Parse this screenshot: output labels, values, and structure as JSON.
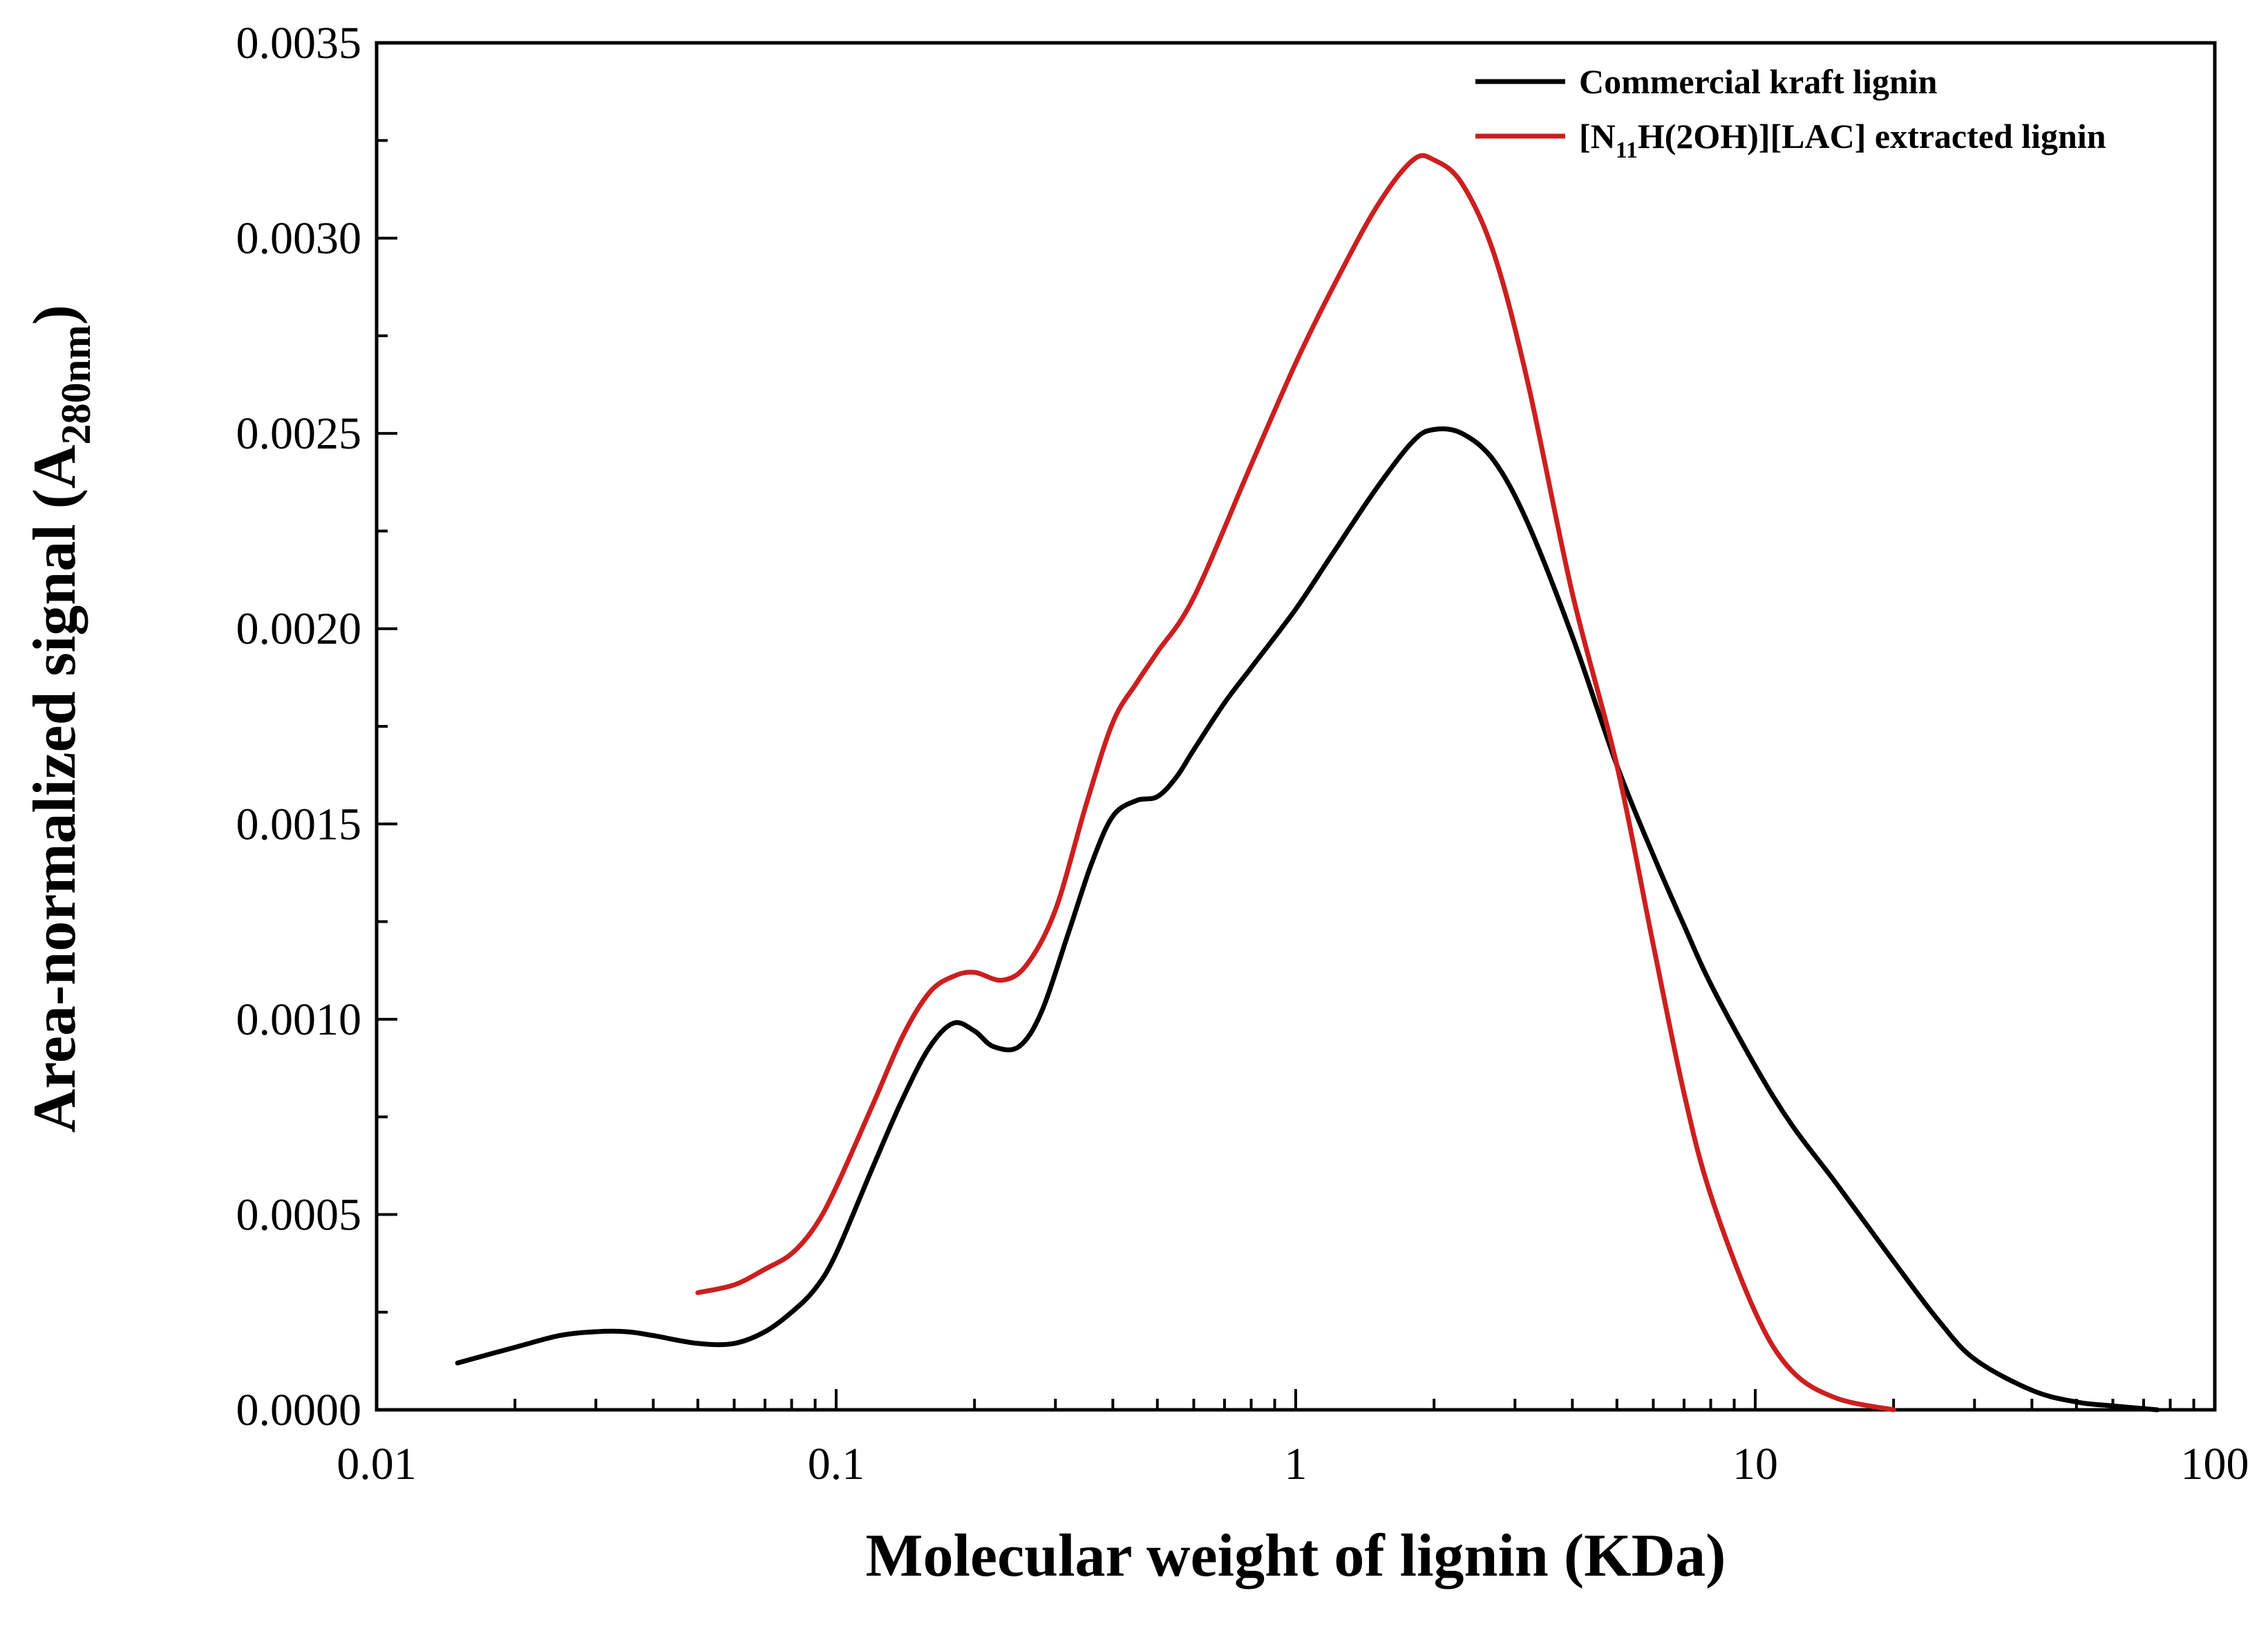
{
  "chart_data": {
    "type": "line",
    "xscale": "log",
    "xlim": [
      0.01,
      100
    ],
    "ylim": [
      0,
      0.0035
    ],
    "grid": false,
    "legend_position": "top-right",
    "xlabel": "Molecular weight of lignin (KDa)",
    "ylabel": {
      "main": "Area-normalized signal (A",
      "sub": "280nm",
      "close": ")"
    },
    "x_ticks": [
      {
        "value": 0.01,
        "label": "0.01"
      },
      {
        "value": 0.1,
        "label": "0.1"
      },
      {
        "value": 1,
        "label": "1"
      },
      {
        "value": 10,
        "label": "10"
      },
      {
        "value": 100,
        "label": "100"
      }
    ],
    "y_ticks": [
      {
        "value": 0.0,
        "label": "0.0000"
      },
      {
        "value": 0.0005,
        "label": "0.0005"
      },
      {
        "value": 0.001,
        "label": "0.0010"
      },
      {
        "value": 0.0015,
        "label": "0.0015"
      },
      {
        "value": 0.002,
        "label": "0.0020"
      },
      {
        "value": 0.0025,
        "label": "0.0025"
      },
      {
        "value": 0.003,
        "label": "0.0030"
      },
      {
        "value": 0.0035,
        "label": "0.0035"
      }
    ],
    "series": [
      {
        "name": "Commercial kraft lignin",
        "color": "#000000",
        "points": [
          [
            0.015,
            0.00012
          ],
          [
            0.02,
            0.00016
          ],
          [
            0.025,
            0.00019
          ],
          [
            0.03,
            0.0002
          ],
          [
            0.035,
            0.0002
          ],
          [
            0.04,
            0.00019
          ],
          [
            0.05,
            0.00017
          ],
          [
            0.06,
            0.00017
          ],
          [
            0.07,
            0.0002
          ],
          [
            0.08,
            0.00025
          ],
          [
            0.09,
            0.00031
          ],
          [
            0.1,
            0.0004
          ],
          [
            0.12,
            0.00062
          ],
          [
            0.14,
            0.0008
          ],
          [
            0.16,
            0.00093
          ],
          [
            0.18,
            0.00099
          ],
          [
            0.2,
            0.00097
          ],
          [
            0.22,
            0.00093
          ],
          [
            0.25,
            0.00093
          ],
          [
            0.28,
            0.00102
          ],
          [
            0.32,
            0.00122
          ],
          [
            0.36,
            0.0014
          ],
          [
            0.4,
            0.00152
          ],
          [
            0.45,
            0.00156
          ],
          [
            0.5,
            0.00157
          ],
          [
            0.55,
            0.00162
          ],
          [
            0.6,
            0.00169
          ],
          [
            0.7,
            0.00181
          ],
          [
            0.8,
            0.0019
          ],
          [
            1.0,
            0.00205
          ],
          [
            1.2,
            0.00219
          ],
          [
            1.5,
            0.00236
          ],
          [
            1.8,
            0.00248
          ],
          [
            2.0,
            0.00251
          ],
          [
            2.3,
            0.0025
          ],
          [
            2.7,
            0.00243
          ],
          [
            3.2,
            0.00227
          ],
          [
            4.0,
            0.00198
          ],
          [
            5.0,
            0.00165
          ],
          [
            6.0,
            0.00142
          ],
          [
            7.0,
            0.00124
          ],
          [
            8.0,
            0.00109
          ],
          [
            10.0,
            0.00088
          ],
          [
            12.0,
            0.00073
          ],
          [
            15.0,
            0.00058
          ],
          [
            20.0,
            0.00038
          ],
          [
            25.0,
            0.00023
          ],
          [
            30.0,
            0.00013
          ],
          [
            40.0,
            5e-05
          ],
          [
            50.0,
            2e-05
          ],
          [
            60.0,
            1e-05
          ],
          [
            75.0,
            0.0
          ]
        ]
      },
      {
        "name": "[N11H(2OH)][LAC] extracted lignin",
        "name_parts": {
          "a": "[N",
          "sub": "11",
          "b": "H(2OH)][LAC] extracted lignin"
        },
        "color": "#cc1f1f",
        "points": [
          [
            0.05,
            0.0003
          ],
          [
            0.06,
            0.00032
          ],
          [
            0.07,
            0.00036
          ],
          [
            0.08,
            0.0004
          ],
          [
            0.09,
            0.00047
          ],
          [
            0.1,
            0.00057
          ],
          [
            0.12,
            0.00078
          ],
          [
            0.14,
            0.00096
          ],
          [
            0.16,
            0.00107
          ],
          [
            0.18,
            0.00111
          ],
          [
            0.2,
            0.00112
          ],
          [
            0.23,
            0.0011
          ],
          [
            0.26,
            0.00114
          ],
          [
            0.3,
            0.00128
          ],
          [
            0.35,
            0.00155
          ],
          [
            0.4,
            0.00176
          ],
          [
            0.45,
            0.00186
          ],
          [
            0.5,
            0.00194
          ],
          [
            0.6,
            0.00208
          ],
          [
            0.8,
            0.00242
          ],
          [
            1.0,
            0.00268
          ],
          [
            1.2,
            0.00287
          ],
          [
            1.5,
            0.00308
          ],
          [
            1.8,
            0.0032
          ],
          [
            2.0,
            0.0032
          ],
          [
            2.3,
            0.00314
          ],
          [
            2.7,
            0.00296
          ],
          [
            3.2,
            0.00263
          ],
          [
            4.0,
            0.00209
          ],
          [
            5.0,
            0.00165
          ],
          [
            6.0,
            0.00119
          ],
          [
            7.0,
            0.00081
          ],
          [
            8.0,
            0.00055
          ],
          [
            10.0,
            0.00025
          ],
          [
            12.0,
            0.0001
          ],
          [
            15.0,
            3e-05
          ],
          [
            20.0,
            0.0
          ]
        ]
      }
    ]
  }
}
